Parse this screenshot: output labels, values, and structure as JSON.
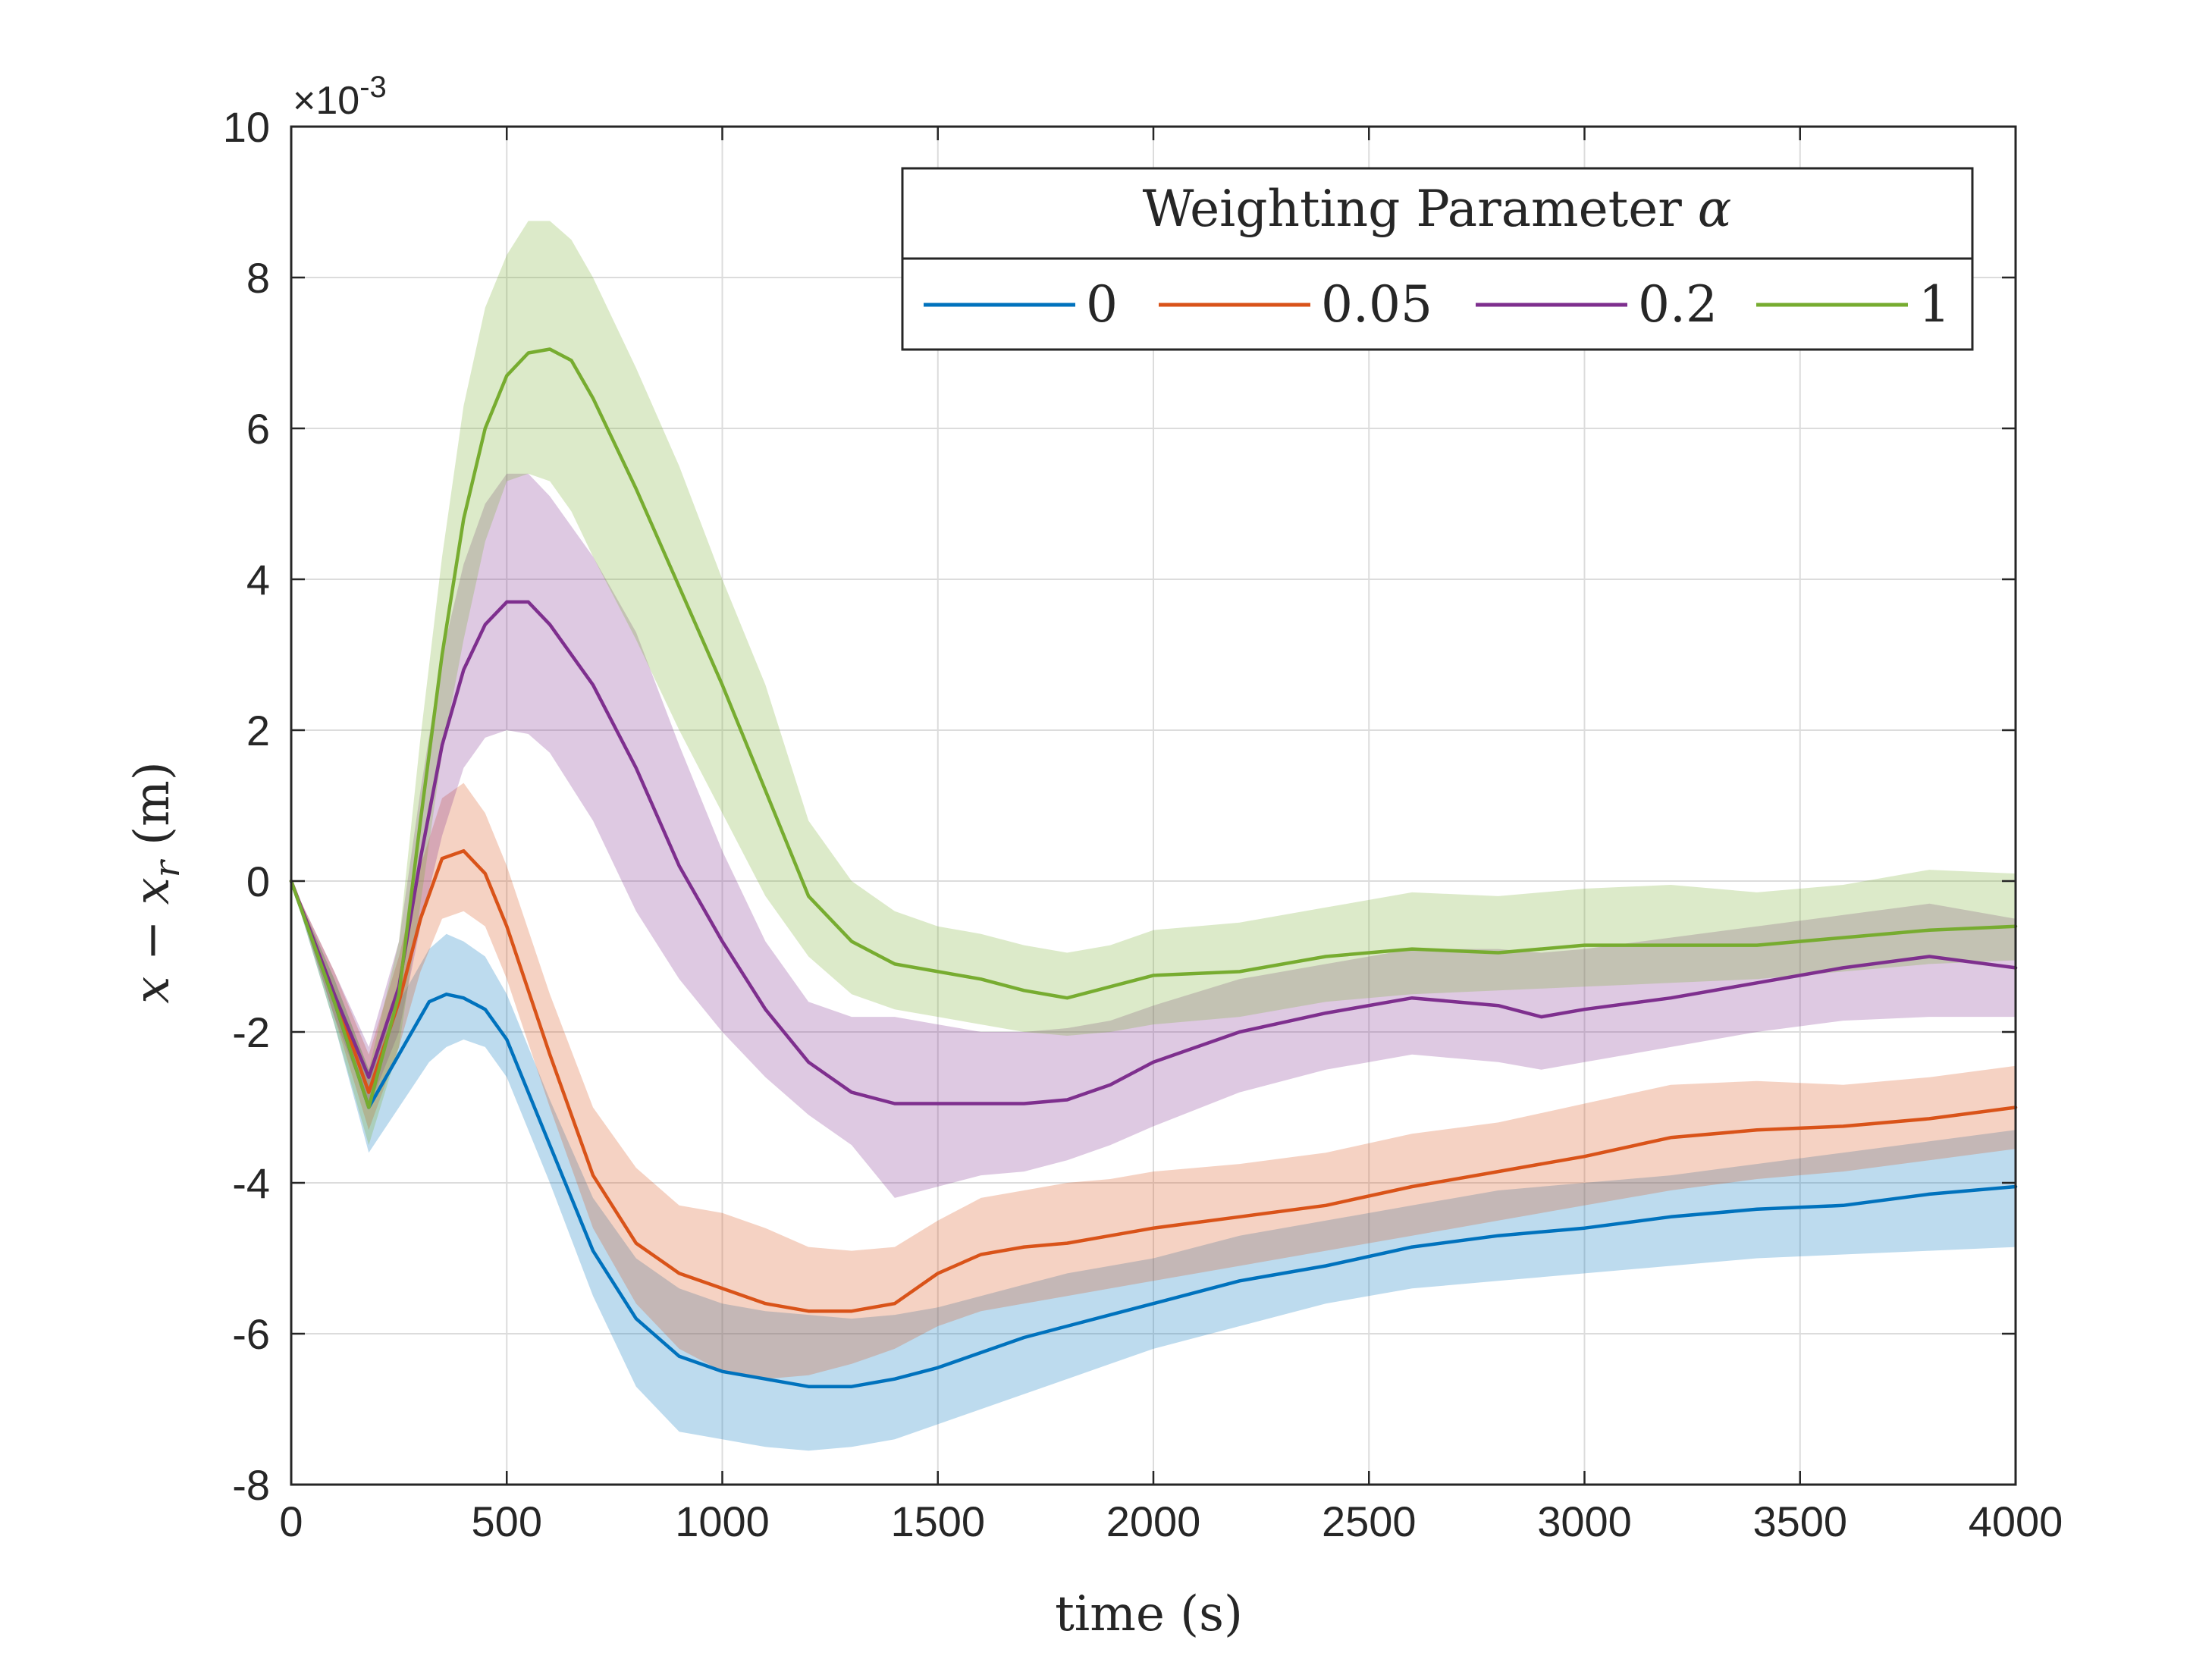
{
  "chart_data": {
    "type": "line",
    "title": "",
    "xlabel": "time (s)",
    "ylabel_parts": {
      "base": "x − x",
      "sub": "r",
      "unit": " (m)"
    },
    "y_multiplier": {
      "base": "×10",
      "exp": "-3"
    },
    "xlim": [
      0,
      4000
    ],
    "ylim": [
      -8,
      10
    ],
    "xticks": [
      0,
      500,
      1000,
      1500,
      2000,
      2500,
      3000,
      3500,
      4000
    ],
    "yticks": [
      -8,
      -6,
      -4,
      -2,
      0,
      2,
      4,
      6,
      8,
      10
    ],
    "ytick_labels": [
      "-8",
      "-6",
      "-4",
      "-2",
      "0",
      "2",
      "4",
      "6",
      "8",
      "10"
    ],
    "grid": true,
    "legend": {
      "title_text": "Weighting Parameter ",
      "title_symbol": "α",
      "placement": "top-right",
      "orientation": "horizontal"
    },
    "series": [
      {
        "name": "0",
        "color": "#0072BD",
        "x": [
          0,
          100,
          180,
          250,
          320,
          360,
          400,
          450,
          500,
          600,
          700,
          800,
          900,
          1000,
          1100,
          1200,
          1300,
          1400,
          1500,
          1600,
          1700,
          1800,
          1900,
          2000,
          2200,
          2400,
          2600,
          2800,
          3000,
          3200,
          3400,
          3600,
          3800,
          4000
        ],
        "y": [
          0,
          -1.6,
          -3.0,
          -2.3,
          -1.6,
          -1.5,
          -1.55,
          -1.7,
          -2.1,
          -3.5,
          -4.9,
          -5.8,
          -6.3,
          -6.5,
          -6.6,
          -6.7,
          -6.7,
          -6.6,
          -6.45,
          -6.25,
          -6.05,
          -5.9,
          -5.75,
          -5.6,
          -5.3,
          -5.1,
          -4.85,
          -4.7,
          -4.6,
          -4.45,
          -4.35,
          -4.3,
          -4.15,
          -4.05
        ],
        "lower": [
          0,
          -1.9,
          -3.6,
          -3.0,
          -2.4,
          -2.2,
          -2.1,
          -2.2,
          -2.6,
          -4.0,
          -5.5,
          -6.7,
          -7.3,
          -7.4,
          -7.5,
          -7.55,
          -7.5,
          -7.4,
          -7.2,
          -7.0,
          -6.8,
          -6.6,
          -6.4,
          -6.2,
          -5.9,
          -5.6,
          -5.4,
          -5.3,
          -5.2,
          -5.1,
          -5.0,
          -4.95,
          -4.9,
          -4.85
        ],
        "upper": [
          0,
          -1.3,
          -2.5,
          -1.6,
          -0.9,
          -0.7,
          -0.8,
          -1.0,
          -1.5,
          -2.9,
          -4.2,
          -5.0,
          -5.4,
          -5.6,
          -5.7,
          -5.75,
          -5.8,
          -5.75,
          -5.65,
          -5.5,
          -5.35,
          -5.2,
          -5.1,
          -5.0,
          -4.7,
          -4.5,
          -4.3,
          -4.1,
          -4.0,
          -3.9,
          -3.75,
          -3.6,
          -3.45,
          -3.3
        ]
      },
      {
        "name": "0.05",
        "color": "#D95319",
        "x": [
          0,
          100,
          180,
          250,
          300,
          350,
          400,
          450,
          500,
          600,
          700,
          800,
          900,
          1000,
          1100,
          1200,
          1300,
          1400,
          1500,
          1600,
          1700,
          1800,
          1900,
          2000,
          2200,
          2400,
          2600,
          2800,
          3000,
          3200,
          3400,
          3600,
          3800,
          4000
        ],
        "y": [
          0,
          -1.5,
          -2.8,
          -1.6,
          -0.5,
          0.3,
          0.4,
          0.1,
          -0.6,
          -2.3,
          -3.9,
          -4.8,
          -5.2,
          -5.4,
          -5.6,
          -5.7,
          -5.7,
          -5.6,
          -5.2,
          -4.95,
          -4.85,
          -4.8,
          -4.7,
          -4.6,
          -4.45,
          -4.3,
          -4.05,
          -3.85,
          -3.65,
          -3.4,
          -3.3,
          -3.25,
          -3.15,
          -3.0
        ],
        "lower": [
          0,
          -1.8,
          -3.3,
          -2.2,
          -1.2,
          -0.5,
          -0.4,
          -0.6,
          -1.3,
          -3.0,
          -4.6,
          -5.6,
          -6.2,
          -6.5,
          -6.6,
          -6.55,
          -6.4,
          -6.2,
          -5.9,
          -5.7,
          -5.6,
          -5.5,
          -5.4,
          -5.3,
          -5.1,
          -4.9,
          -4.7,
          -4.5,
          -4.3,
          -4.1,
          -3.95,
          -3.85,
          -3.7,
          -3.55
        ],
        "upper": [
          0,
          -1.2,
          -2.3,
          -1.0,
          0.2,
          1.1,
          1.3,
          0.9,
          0.2,
          -1.5,
          -3.0,
          -3.8,
          -4.3,
          -4.4,
          -4.6,
          -4.85,
          -4.9,
          -4.85,
          -4.5,
          -4.2,
          -4.1,
          -4.0,
          -3.95,
          -3.85,
          -3.75,
          -3.6,
          -3.35,
          -3.2,
          -2.95,
          -2.7,
          -2.65,
          -2.7,
          -2.6,
          -2.45
        ]
      },
      {
        "name": "0.2",
        "color": "#7E2F8E",
        "x": [
          0,
          100,
          180,
          250,
          300,
          350,
          400,
          450,
          500,
          550,
          600,
          700,
          800,
          900,
          1000,
          1100,
          1200,
          1300,
          1400,
          1500,
          1600,
          1700,
          1800,
          1900,
          2000,
          2200,
          2400,
          2600,
          2700,
          2800,
          2900,
          3000,
          3200,
          3400,
          3600,
          3800,
          4000
        ],
        "y": [
          0,
          -1.5,
          -2.6,
          -1.4,
          0.3,
          1.8,
          2.8,
          3.4,
          3.7,
          3.7,
          3.4,
          2.6,
          1.5,
          0.2,
          -0.8,
          -1.7,
          -2.4,
          -2.8,
          -2.95,
          -2.95,
          -2.95,
          -2.95,
          -2.9,
          -2.7,
          -2.4,
          -2.0,
          -1.75,
          -1.55,
          -1.6,
          -1.65,
          -1.8,
          -1.7,
          -1.55,
          -1.35,
          -1.15,
          -1.0,
          -1.15
        ],
        "lower": [
          0,
          -1.8,
          -3.0,
          -2.0,
          -0.6,
          0.6,
          1.5,
          1.9,
          2.0,
          1.95,
          1.7,
          0.8,
          -0.4,
          -1.3,
          -2.0,
          -2.6,
          -3.1,
          -3.5,
          -4.2,
          -4.05,
          -3.9,
          -3.85,
          -3.7,
          -3.5,
          -3.25,
          -2.8,
          -2.5,
          -2.3,
          -2.35,
          -2.4,
          -2.5,
          -2.4,
          -2.2,
          -2.0,
          -1.85,
          -1.8,
          -1.8
        ],
        "upper": [
          0,
          -1.2,
          -2.2,
          -0.8,
          1.2,
          3.0,
          4.2,
          5.0,
          5.4,
          5.4,
          5.1,
          4.3,
          3.3,
          1.8,
          0.4,
          -0.8,
          -1.6,
          -1.8,
          -1.8,
          -1.9,
          -2.0,
          -2.0,
          -1.95,
          -1.85,
          -1.65,
          -1.3,
          -1.1,
          -0.9,
          -0.9,
          -0.9,
          -0.95,
          -0.9,
          -0.75,
          -0.6,
          -0.45,
          -0.3,
          -0.5
        ]
      },
      {
        "name": "1",
        "color": "#77AC30",
        "x": [
          0,
          100,
          180,
          250,
          300,
          350,
          400,
          450,
          500,
          550,
          600,
          650,
          700,
          800,
          900,
          1000,
          1100,
          1200,
          1300,
          1400,
          1500,
          1600,
          1700,
          1800,
          1900,
          2000,
          2200,
          2400,
          2600,
          2800,
          3000,
          3200,
          3400,
          3600,
          3800,
          4000
        ],
        "y": [
          0,
          -1.6,
          -3.0,
          -1.5,
          0.8,
          3.0,
          4.8,
          6.0,
          6.7,
          7.0,
          7.05,
          6.9,
          6.4,
          5.2,
          3.9,
          2.6,
          1.2,
          -0.2,
          -0.8,
          -1.1,
          -1.2,
          -1.3,
          -1.45,
          -1.55,
          -1.4,
          -1.25,
          -1.2,
          -1.0,
          -0.9,
          -0.95,
          -0.85,
          -0.85,
          -0.85,
          -0.75,
          -0.65,
          -0.6
        ],
        "lower": [
          0,
          -1.9,
          -3.5,
          -2.2,
          -0.3,
          1.7,
          3.2,
          4.5,
          5.3,
          5.4,
          5.3,
          4.9,
          4.3,
          3.2,
          2.0,
          0.9,
          -0.2,
          -1.0,
          -1.5,
          -1.7,
          -1.8,
          -1.9,
          -2.0,
          -2.05,
          -2.0,
          -1.9,
          -1.8,
          -1.6,
          -1.5,
          -1.45,
          -1.4,
          -1.35,
          -1.3,
          -1.2,
          -1.1,
          -1.05
        ],
        "upper": [
          0,
          -1.3,
          -2.5,
          -0.8,
          1.9,
          4.3,
          6.3,
          7.6,
          8.3,
          8.75,
          8.75,
          8.5,
          8.0,
          6.8,
          5.5,
          4.0,
          2.6,
          0.8,
          0.0,
          -0.4,
          -0.6,
          -0.7,
          -0.85,
          -0.95,
          -0.85,
          -0.65,
          -0.55,
          -0.35,
          -0.15,
          -0.2,
          -0.1,
          -0.05,
          -0.15,
          -0.05,
          0.15,
          0.1
        ]
      }
    ]
  }
}
